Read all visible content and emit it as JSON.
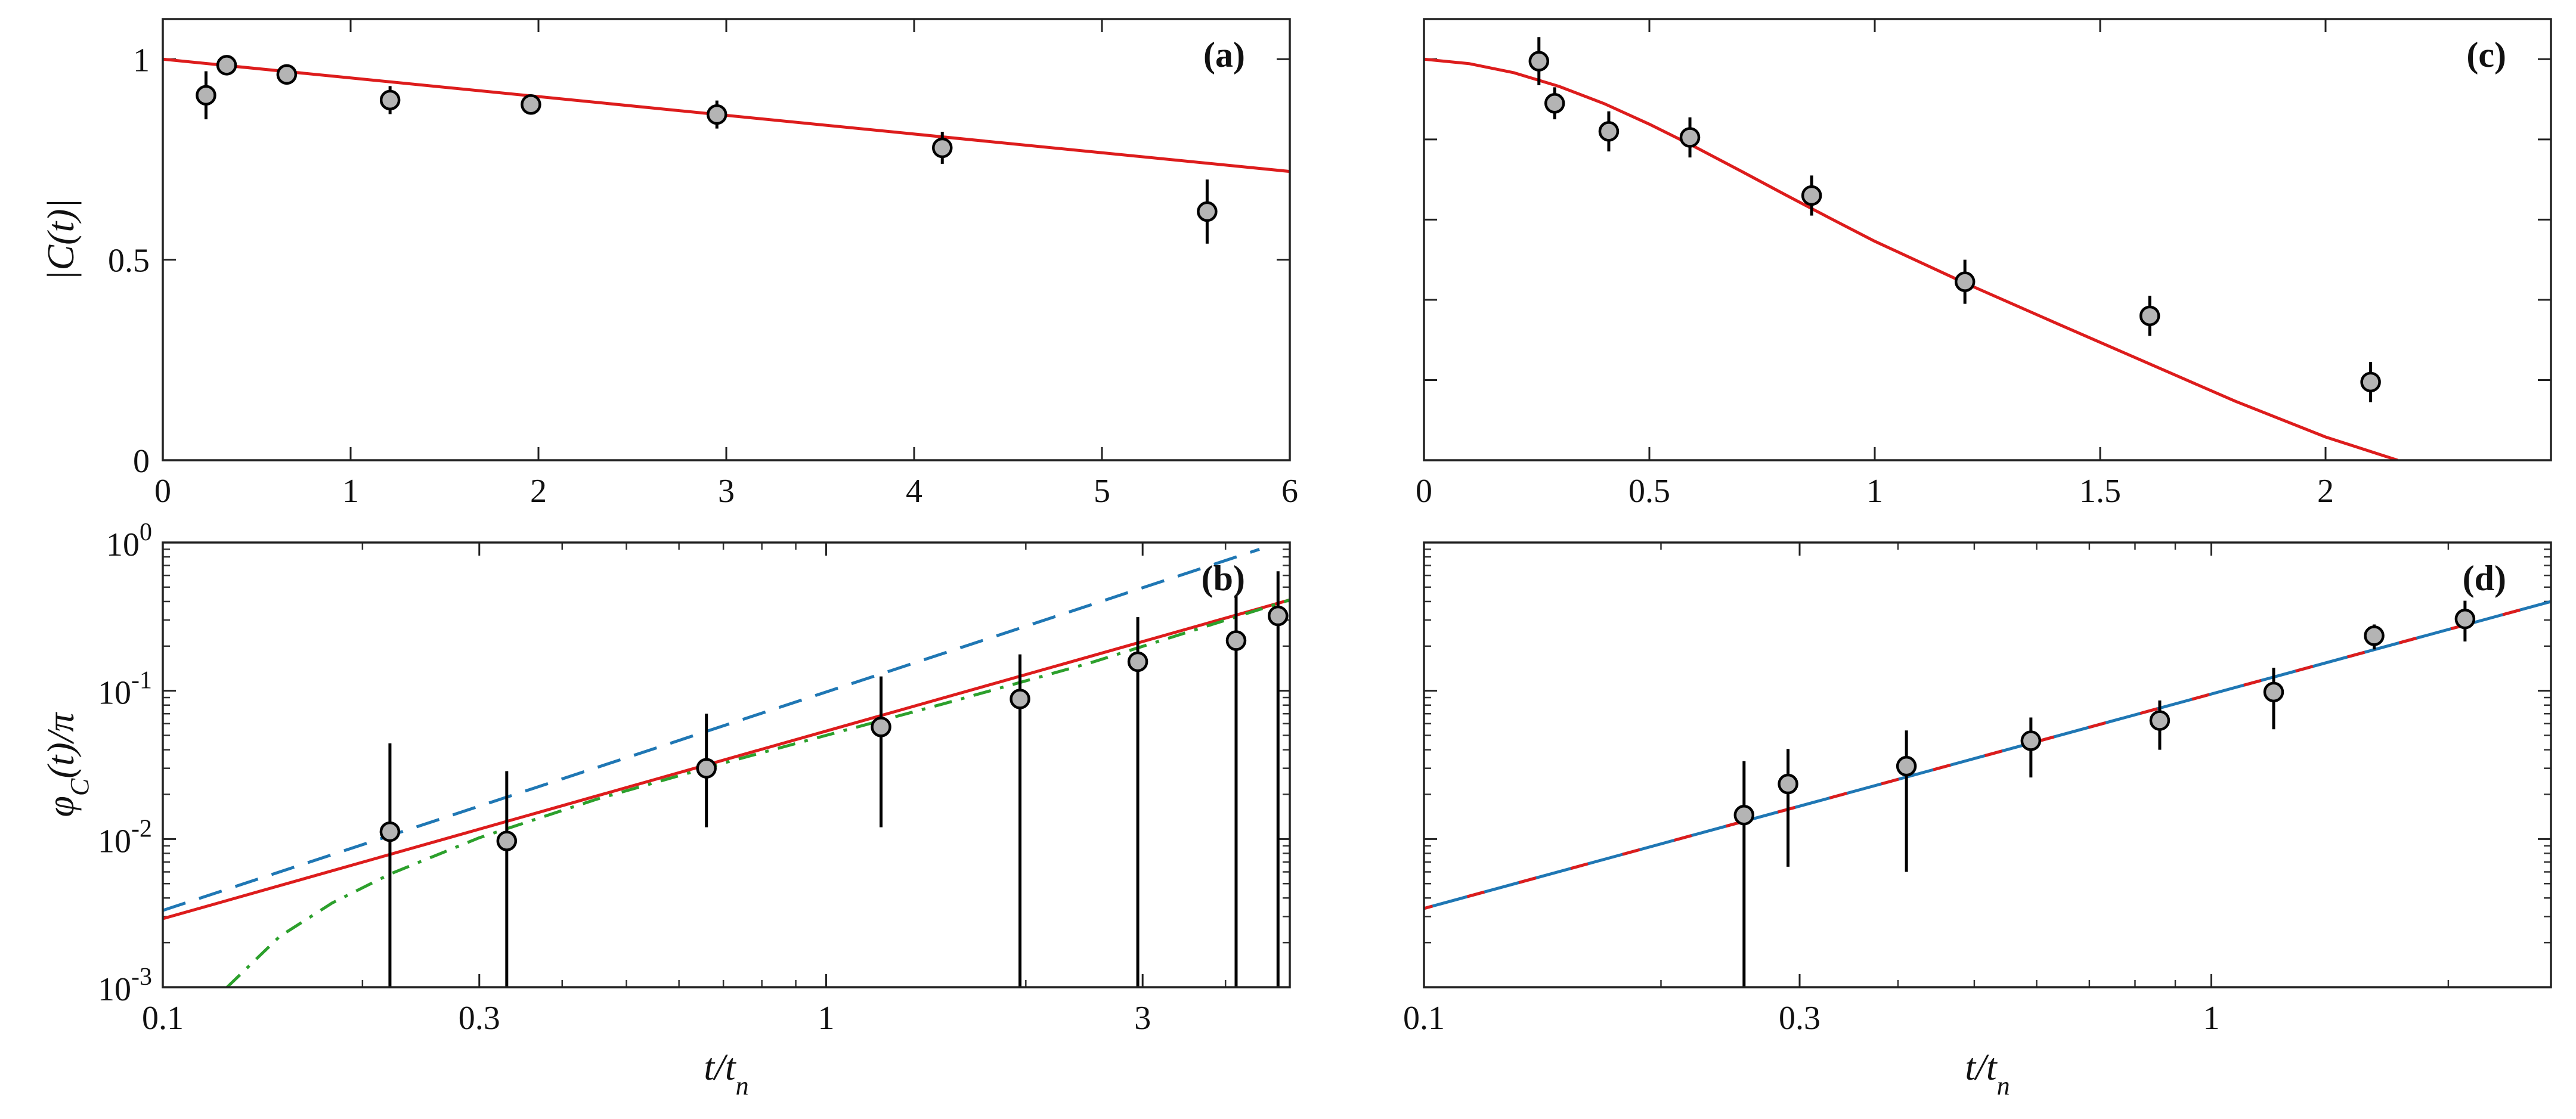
{
  "chart_data": [
    {
      "id": "a",
      "type": "scatter",
      "panel_label": "(a)",
      "xscale": "linear",
      "yscale": "linear",
      "xlim": [
        0,
        6
      ],
      "ylim": [
        0,
        1.1
      ],
      "xticks": [
        0,
        1,
        2,
        3,
        4,
        5,
        6
      ],
      "xtick_labels": [
        "0",
        "1",
        "2",
        "3",
        "4",
        "5",
        "6"
      ],
      "yticks": [
        0,
        0.5,
        1
      ],
      "ytick_labels": [
        "0",
        "0.5",
        "1"
      ],
      "xlabel": "",
      "ylabel": "|C(t)|",
      "points": {
        "x": [
          0.23,
          0.34,
          0.66,
          1.21,
          1.96,
          2.95,
          4.15,
          5.56
        ],
        "y": [
          0.91,
          0.985,
          0.962,
          0.898,
          0.887,
          0.862,
          0.779,
          0.62
        ],
        "err": [
          0.06,
          0.025,
          0.025,
          0.035,
          0.02,
          0.035,
          0.04,
          0.08
        ]
      },
      "series": [
        {
          "name": "fit",
          "color": "#dd1c1c",
          "style": "solid",
          "x": [
            0,
            6
          ],
          "y": [
            1.0,
            0.72
          ]
        }
      ]
    },
    {
      "id": "b",
      "type": "scatter",
      "panel_label": "(b)",
      "xscale": "log",
      "yscale": "log",
      "xlim": [
        0.1,
        5.0
      ],
      "ylim": [
        0.001,
        1
      ],
      "xticks": [
        0.1,
        0.3,
        1,
        3
      ],
      "xtick_labels": [
        "0.1",
        "0.3",
        "1",
        "3"
      ],
      "yticks": [
        0.001,
        0.01,
        0.1,
        1
      ],
      "ytick_labels": [
        {
          "base": "10",
          "exp": "-3"
        },
        {
          "base": "10",
          "exp": "-2"
        },
        {
          "base": "10",
          "exp": "-1"
        },
        {
          "base": "10",
          "exp": "0"
        }
      ],
      "xlabel": "t/t_n",
      "ylabel": "φ_C(t)/π",
      "points": {
        "x": [
          0.22,
          0.33,
          0.66,
          1.21,
          1.96,
          2.95,
          4.15,
          4.8
        ],
        "y": [
          0.0112,
          0.0097,
          0.03,
          0.057,
          0.088,
          0.157,
          0.218,
          0.32
        ],
        "err_low": [
          0.0105,
          0.0095,
          0.018,
          0.045,
          0.088,
          0.157,
          0.218,
          0.32
        ],
        "err_high": [
          0.033,
          0.019,
          0.04,
          0.068,
          0.088,
          0.157,
          0.218,
          0.32
        ]
      },
      "series": [
        {
          "name": "fit",
          "color": "#dd1c1c",
          "style": "solid",
          "x": [
            0.1,
            5.0
          ],
          "y": [
            0.0029,
            0.41
          ]
        },
        {
          "name": "dashed",
          "color": "#1f77b4",
          "style": "dashed",
          "x": [
            0.1,
            4.5
          ],
          "y": [
            0.0033,
            0.9
          ]
        },
        {
          "name": "dash-dot",
          "color": "#2ca02c",
          "style": "dashdot",
          "x": [
            0.125,
            0.15,
            0.18,
            0.22,
            0.3,
            0.45,
            0.7,
            1.0,
            1.5,
            2.5,
            5.0
          ],
          "y": [
            0.001,
            0.0022,
            0.0037,
            0.0058,
            0.0102,
            0.0185,
            0.0325,
            0.05,
            0.0815,
            0.154,
            0.41
          ]
        }
      ]
    },
    {
      "id": "c",
      "type": "scatter",
      "panel_label": "(c)",
      "xscale": "linear",
      "yscale": "linear",
      "xlim": [
        0,
        2.5
      ],
      "ylim": [
        0,
        1.1
      ],
      "xticks": [
        0,
        0.5,
        1,
        1.5,
        2
      ],
      "xtick_labels": [
        "0",
        "0.5",
        "1",
        "1.5",
        "2"
      ],
      "yticks": [
        0.2,
        0.4,
        0.6,
        0.8,
        1.0
      ],
      "ytick_labels": [],
      "xlabel": "",
      "ylabel": "",
      "points": {
        "x": [
          0.255,
          0.29,
          0.41,
          0.59,
          0.86,
          1.2,
          1.61,
          2.1
        ],
        "y": [
          0.995,
          0.89,
          0.82,
          0.805,
          0.66,
          0.445,
          0.36,
          0.195
        ],
        "err": [
          0.06,
          0.04,
          0.05,
          0.05,
          0.05,
          0.055,
          0.05,
          0.05
        ]
      },
      "series": [
        {
          "name": "fit",
          "color": "#dd1c1c",
          "style": "solid",
          "x": [
            0,
            0.1,
            0.2,
            0.3,
            0.4,
            0.5,
            0.6,
            0.7,
            0.8,
            0.9,
            1.0,
            1.2,
            1.4,
            1.6,
            1.8,
            2.0,
            2.16
          ],
          "y": [
            1.0,
            0.989,
            0.966,
            0.932,
            0.889,
            0.838,
            0.782,
            0.723,
            0.663,
            0.604,
            0.546,
            0.442,
            0.343,
            0.245,
            0.147,
            0.058,
            0.0
          ]
        }
      ]
    },
    {
      "id": "d",
      "type": "scatter",
      "panel_label": "(d)",
      "xscale": "log",
      "yscale": "log",
      "xlim": [
        0.1,
        2.7
      ],
      "ylim": [
        0.001,
        1
      ],
      "xticks": [
        0.1,
        0.3,
        1
      ],
      "xtick_labels": [
        "0.1",
        "0.3",
        "1"
      ],
      "yticks": [
        0.001,
        0.01,
        0.1,
        1
      ],
      "ytick_labels": [],
      "xlabel": "t/t_n",
      "ylabel": "",
      "points": {
        "x": [
          0.255,
          0.29,
          0.41,
          0.59,
          0.86,
          1.2,
          1.61,
          2.1
        ],
        "y": [
          0.0145,
          0.0235,
          0.031,
          0.046,
          0.063,
          0.098,
          0.235,
          0.305
        ],
        "err_low": [
          0.0145,
          0.017,
          0.025,
          0.02,
          0.023,
          0.043,
          0.045,
          0.09
        ],
        "err_high": [
          0.019,
          0.017,
          0.023,
          0.02,
          0.023,
          0.045,
          0.045,
          0.1
        ]
      },
      "series": [
        {
          "name": "fit",
          "color": "#1f77b4",
          "style": "redblue",
          "x": [
            0.1,
            2.7
          ],
          "y": [
            0.0034,
            0.4
          ]
        }
      ]
    }
  ]
}
